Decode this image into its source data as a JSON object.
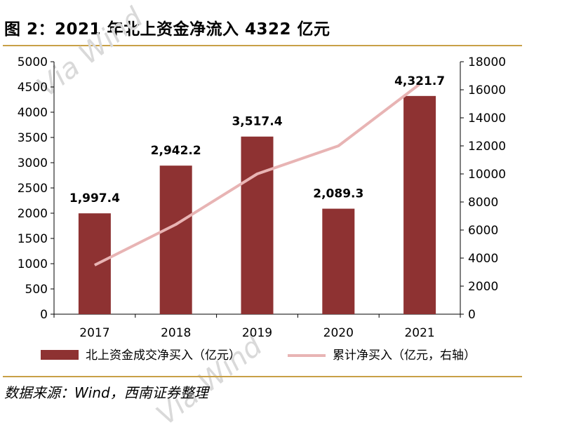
{
  "figure_title": "图 2：2021 年北上资金净流入 4322 亿元",
  "source_note": "数据来源：Wind，西南证券整理",
  "watermark": "Via Wind",
  "colors": {
    "bar": "#8e3232",
    "line": "#e8b4b4",
    "rule": "#c8a046"
  },
  "chart_data": {
    "type": "bar",
    "categories": [
      "2017",
      "2018",
      "2019",
      "2020",
      "2021"
    ],
    "series": [
      {
        "name": "北上资金成交净买入（亿元）",
        "type": "bar",
        "axis": "left",
        "values": [
          1997.4,
          2942.2,
          3517.4,
          2089.3,
          4321.7
        ],
        "labels": [
          "1,997.4",
          "2,942.2",
          "3,517.4",
          "2,089.3",
          "4,321.7"
        ]
      },
      {
        "name": "累计净买入（亿元，右轴）",
        "type": "line",
        "axis": "right",
        "values": [
          3500,
          6400,
          10000,
          12000,
          16400
        ]
      }
    ],
    "y_left": {
      "ylim": [
        0,
        5000
      ],
      "ticks": [
        "0",
        "500",
        "1000",
        "1500",
        "2000",
        "2500",
        "3000",
        "3500",
        "4000",
        "4500",
        "5000"
      ]
    },
    "y_right": {
      "ylim": [
        0,
        18000
      ],
      "ticks": [
        "0",
        "2000",
        "4000",
        "6000",
        "8000",
        "10000",
        "12000",
        "14000",
        "16000",
        "18000"
      ]
    },
    "legend_position": "bottom",
    "grid": false
  }
}
